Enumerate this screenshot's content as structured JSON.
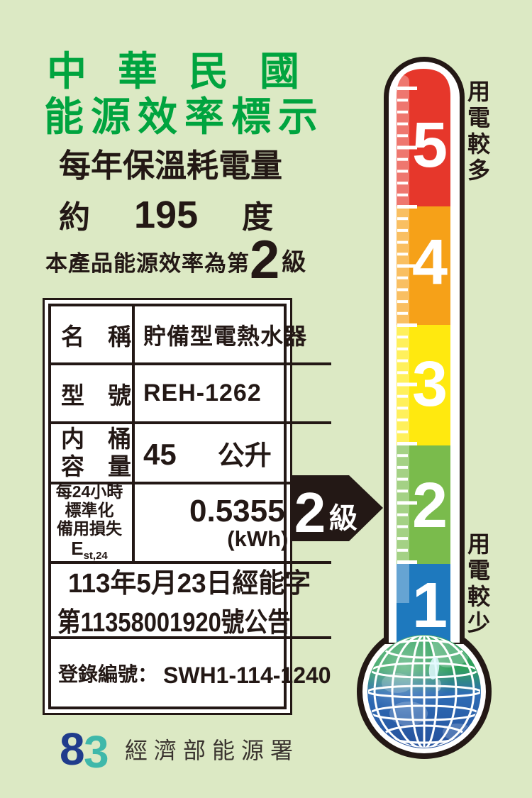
{
  "header": {
    "title_line1": "中華民國",
    "title_line2": "能源效率標示",
    "subtitle": "每年保溫耗電量",
    "approx_label": "約",
    "consumption_value": "195",
    "consumption_unit": "度",
    "grade_prefix": "本產品能源效率為第",
    "grade_value": "2",
    "grade_suffix": "級"
  },
  "table": {
    "name_label": "名　稱",
    "name_value": "貯備型電熱水器",
    "model_label": "型　號",
    "model_value": "REH-1262",
    "capacity_label_line1": "内　桶",
    "capacity_label_line2": "容　量",
    "capacity_value": "45",
    "capacity_unit": "公升",
    "loss_label_line1": "每24小時",
    "loss_label_line2": "標準化",
    "loss_label_line3": "備用損失",
    "loss_symbol": "E",
    "loss_symbol_sub": "st,24",
    "loss_value": "0.5355",
    "loss_unit": "(kWh)",
    "announcement_line1": "113年5月23日經能字",
    "announcement_line2": "第11358001920號公告",
    "registration_label": "登錄編號：",
    "registration_value": "SWH1-114-1240"
  },
  "footer": {
    "agency_name": "經濟部能源署"
  },
  "thermometer": {
    "grade_labels": [
      "5",
      "4",
      "3",
      "2",
      "1"
    ],
    "caption_top": "用電較多",
    "caption_bottom": "用電較少",
    "pointer_value": "2",
    "pointer_unit": "級",
    "section_colors": {
      "grade5": "#e6372b",
      "grade4": "#f6a118",
      "grade3": "#ffe90f",
      "grade2": "#7abb4c",
      "grade1": "#1e79be"
    }
  },
  "colors": {
    "background": "#dce9c4",
    "title_green": "#00a43f",
    "text_black": "#231815",
    "pointer_black": "#231815",
    "globe_green": "#2fa05c",
    "globe_blue": "#2e6cb5",
    "logo_blue": "#203c8c",
    "logo_teal": "#3eb8aa"
  }
}
